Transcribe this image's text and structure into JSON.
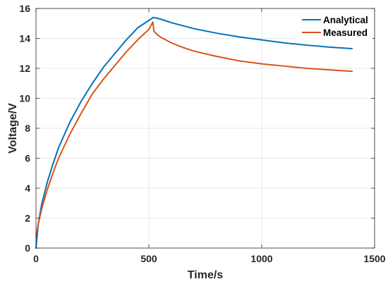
{
  "chart_data": {
    "type": "line",
    "xlabel": "Time/s",
    "ylabel": "Voltage/V",
    "xlim": [
      0,
      1500
    ],
    "ylim": [
      0,
      16
    ],
    "xticks": [
      0,
      500,
      1000,
      1500
    ],
    "yticks": [
      0,
      2,
      4,
      6,
      8,
      10,
      12,
      14,
      16
    ],
    "grid": true,
    "legend_position": "top-right",
    "series": [
      {
        "name": "Analytical",
        "color": "#0072BD",
        "x": [
          0,
          10,
          25,
          50,
          75,
          100,
          150,
          200,
          250,
          300,
          350,
          400,
          450,
          500,
          520,
          550,
          600,
          650,
          700,
          800,
          900,
          1000,
          1100,
          1200,
          1300,
          1400
        ],
        "y": [
          0,
          1.6,
          2.9,
          4.4,
          5.6,
          6.7,
          8.4,
          9.8,
          11.0,
          12.1,
          13.0,
          13.9,
          14.7,
          15.2,
          15.4,
          15.3,
          15.05,
          14.85,
          14.65,
          14.35,
          14.1,
          13.9,
          13.7,
          13.55,
          13.42,
          13.32
        ]
      },
      {
        "name": "Measured",
        "color": "#D95319",
        "x": [
          0,
          10,
          25,
          50,
          75,
          100,
          150,
          200,
          250,
          300,
          350,
          400,
          450,
          500,
          518,
          522,
          530,
          550,
          600,
          650,
          700,
          800,
          900,
          1000,
          1100,
          1200,
          1300,
          1400
        ],
        "y": [
          0.8,
          1.6,
          2.6,
          3.9,
          5.0,
          6.0,
          7.6,
          9.0,
          10.3,
          11.3,
          12.2,
          13.1,
          13.9,
          14.6,
          15.1,
          14.5,
          14.35,
          14.1,
          13.7,
          13.4,
          13.15,
          12.8,
          12.5,
          12.3,
          12.15,
          12.0,
          11.9,
          11.8
        ]
      }
    ]
  }
}
